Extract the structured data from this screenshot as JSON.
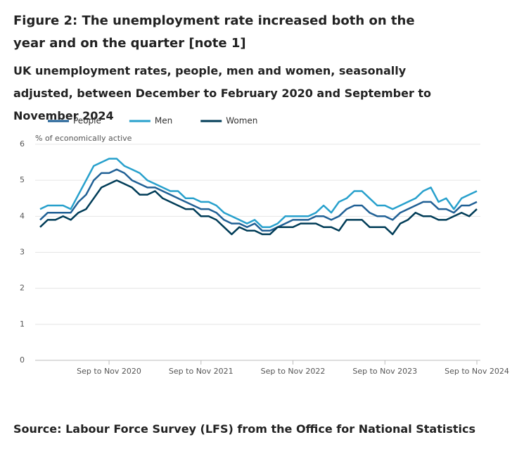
{
  "chart_data": {
    "type": "line",
    "title": "Figure 2: The unemployment rate increased both on the year and on the quarter [note 1]",
    "subtitle": "UK unemployment rates, people, men and women, seasonally adjusted, between December to February 2020 and September to November 2024",
    "y_label": "% of economically active",
    "source": "Source: Labour Force Survey (LFS) from the Office for National Statistics",
    "categories": [
      null,
      null,
      null,
      null,
      null,
      null,
      null,
      null,
      null,
      "Sep to Nov 2020",
      null,
      null,
      null,
      null,
      null,
      null,
      null,
      null,
      null,
      null,
      null,
      "Sep to Nov 2021",
      null,
      null,
      null,
      null,
      null,
      null,
      null,
      null,
      null,
      null,
      null,
      "Sep to Nov 2022",
      null,
      null,
      null,
      null,
      null,
      null,
      null,
      null,
      null,
      null,
      null,
      "Sep to Nov 2023",
      null,
      null,
      null,
      null,
      null,
      null,
      null,
      null,
      null,
      null,
      null,
      "Sep to Nov 2024"
    ],
    "ylim": [
      0,
      6
    ],
    "yticks": [
      0,
      1,
      2,
      3,
      4,
      5,
      6
    ],
    "grid": true,
    "legend": "top-left",
    "series": [
      {
        "name": "People",
        "color": "#206095",
        "values": [
          3.9,
          4.1,
          4.1,
          4.1,
          4.1,
          4.4,
          4.6,
          5.0,
          5.2,
          5.2,
          5.3,
          5.2,
          5.0,
          4.9,
          4.8,
          4.8,
          4.7,
          4.6,
          4.5,
          4.4,
          4.3,
          4.2,
          4.2,
          4.1,
          3.9,
          3.8,
          3.8,
          3.7,
          3.8,
          3.6,
          3.6,
          3.7,
          3.8,
          3.9,
          3.9,
          3.9,
          4.0,
          4.0,
          3.9,
          4.0,
          4.2,
          4.3,
          4.3,
          4.1,
          4.0,
          4.0,
          3.9,
          4.1,
          4.2,
          4.3,
          4.4,
          4.4,
          4.2,
          4.2,
          4.1,
          4.3,
          4.3,
          4.4
        ]
      },
      {
        "name": "Men",
        "color": "#27a0cc",
        "values": [
          4.2,
          4.3,
          4.3,
          4.3,
          4.2,
          4.6,
          5.0,
          5.4,
          5.5,
          5.6,
          5.6,
          5.4,
          5.3,
          5.2,
          5.0,
          4.9,
          4.8,
          4.7,
          4.7,
          4.5,
          4.5,
          4.4,
          4.4,
          4.3,
          4.1,
          4.0,
          3.9,
          3.8,
          3.9,
          3.7,
          3.7,
          3.8,
          4.0,
          4.0,
          4.0,
          4.0,
          4.1,
          4.3,
          4.1,
          4.4,
          4.5,
          4.7,
          4.7,
          4.5,
          4.3,
          4.3,
          4.2,
          4.3,
          4.4,
          4.5,
          4.7,
          4.8,
          4.4,
          4.5,
          4.2,
          4.5,
          4.6,
          4.7
        ]
      },
      {
        "name": "Women",
        "color": "#003c57",
        "values": [
          3.7,
          3.9,
          3.9,
          4.0,
          3.9,
          4.1,
          4.2,
          4.5,
          4.8,
          4.9,
          5.0,
          4.9,
          4.8,
          4.6,
          4.6,
          4.7,
          4.5,
          4.4,
          4.3,
          4.2,
          4.2,
          4.0,
          4.0,
          3.9,
          3.7,
          3.5,
          3.7,
          3.6,
          3.6,
          3.5,
          3.5,
          3.7,
          3.7,
          3.7,
          3.8,
          3.8,
          3.8,
          3.7,
          3.7,
          3.6,
          3.9,
          3.9,
          3.9,
          3.7,
          3.7,
          3.7,
          3.5,
          3.8,
          3.9,
          4.1,
          4.0,
          4.0,
          3.9,
          3.9,
          4.0,
          4.1,
          4.0,
          4.2
        ]
      }
    ]
  }
}
